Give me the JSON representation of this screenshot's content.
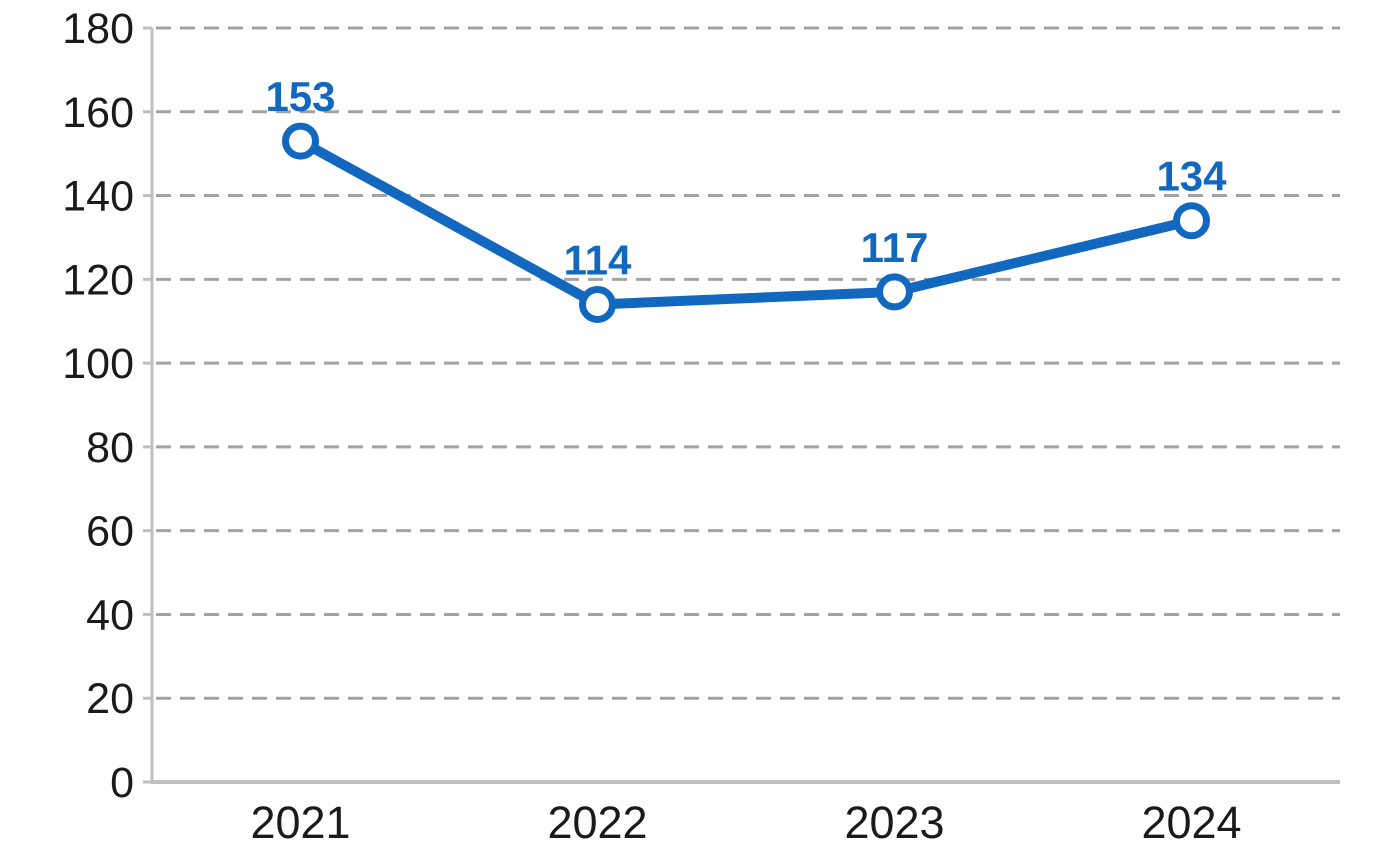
{
  "chart_data": {
    "type": "line",
    "title": "",
    "xlabel": "",
    "ylabel": "",
    "categories": [
      "2021",
      "2022",
      "2023",
      "2024"
    ],
    "values": [
      153,
      114,
      117,
      134
    ],
    "data_labels": [
      "153",
      "114",
      "117",
      "134"
    ],
    "ylim": [
      0,
      180
    ],
    "yticks": [
      0,
      20,
      40,
      60,
      80,
      100,
      120,
      140,
      160,
      180
    ],
    "ytick_labels": [
      "0",
      "20",
      "40",
      "60",
      "80",
      "100",
      "120",
      "140",
      "160",
      "180"
    ],
    "grid": "horizontal-dashed",
    "legend": "none",
    "colors": {
      "line": "#1268BE",
      "marker_fill": "#FFFFFF",
      "marker_stroke": "#1268BE",
      "data_label": "#1268BE",
      "gridline": "#A3A3A3",
      "axis": "#BFBFBF",
      "tick_label": "#1A1A1A"
    }
  }
}
